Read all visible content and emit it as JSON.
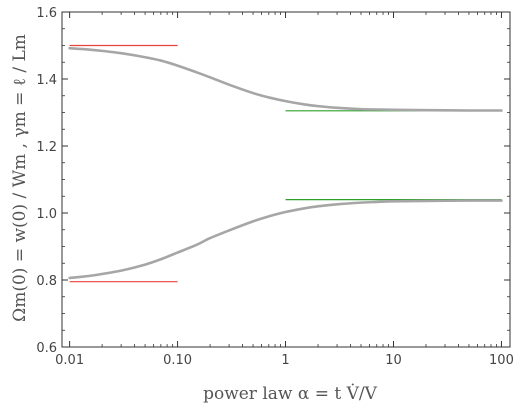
{
  "chart_data": {
    "type": "line",
    "x_scale": "log",
    "xlim": [
      0.0085,
      120
    ],
    "ylim": [
      0.6,
      1.6
    ],
    "xlabel": "power law  α = t V̇/V",
    "ylabel": "Ωm(0) = w(0) / Wm ,    γm = ℓ / Lm",
    "x_ticks": [
      {
        "value": 0.01,
        "label": "0.01"
      },
      {
        "value": 0.1,
        "label": "0.10"
      },
      {
        "value": 1,
        "label": "1"
      },
      {
        "value": 10,
        "label": "10"
      },
      {
        "value": 100,
        "label": "100"
      }
    ],
    "y_ticks": [
      {
        "value": 0.6,
        "label": "0.6"
      },
      {
        "value": 0.8,
        "label": "0.8"
      },
      {
        "value": 1.0,
        "label": "1.0"
      },
      {
        "value": 1.2,
        "label": "1.2"
      },
      {
        "value": 1.4,
        "label": "1.4"
      },
      {
        "value": 1.6,
        "label": "1.6"
      }
    ],
    "grid": false,
    "series": [
      {
        "color": "#a6a6a6",
        "x": [
          0.01,
          0.015,
          0.02,
          0.03,
          0.05,
          0.07,
          0.1,
          0.15,
          0.2,
          0.3,
          0.5,
          0.7,
          1,
          1.5,
          2,
          3,
          5,
          7,
          10,
          20,
          50,
          100
        ],
        "y": [
          1.492,
          1.488,
          1.484,
          1.477,
          1.465,
          1.455,
          1.44,
          1.42,
          1.405,
          1.383,
          1.358,
          1.345,
          1.334,
          1.324,
          1.319,
          1.314,
          1.31,
          1.309,
          1.308,
          1.307,
          1.306,
          1.306
        ]
      },
      {
        "color": "#a6a6a6",
        "x": [
          0.01,
          0.015,
          0.02,
          0.03,
          0.05,
          0.07,
          0.1,
          0.15,
          0.2,
          0.3,
          0.5,
          0.7,
          1,
          1.5,
          2,
          3,
          5,
          7,
          10,
          20,
          50,
          100
        ],
        "y": [
          0.806,
          0.812,
          0.818,
          0.828,
          0.846,
          0.862,
          0.882,
          0.905,
          0.925,
          0.948,
          0.975,
          0.99,
          1.003,
          1.014,
          1.02,
          1.026,
          1.031,
          1.033,
          1.035,
          1.036,
          1.037,
          1.037
        ]
      }
    ],
    "reference_lines": [
      {
        "y": 1.5,
        "x_from": 0.01,
        "x_to": 0.1,
        "color": "#e8423f"
      },
      {
        "y": 0.795,
        "x_from": 0.01,
        "x_to": 0.1,
        "color": "#e8423f"
      },
      {
        "y": 1.305,
        "x_from": 1,
        "x_to": 100,
        "color": "#2ca02c"
      },
      {
        "y": 1.04,
        "x_from": 1,
        "x_to": 100,
        "color": "#2ca02c"
      }
    ]
  }
}
